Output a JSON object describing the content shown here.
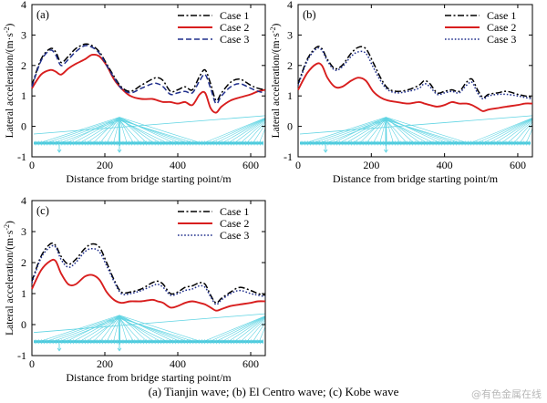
{
  "caption": "(a)  Tianjin  wave;  (b)  El Centro wave; (c) Kobe wave",
  "watermark": "@有色金属在线",
  "chart_data": [
    {
      "type": "line",
      "panel_label": "(a)",
      "xlabel": "Distance from bridge starting point/m",
      "ylabel_pre": "Lateral acceleration/(m·s",
      "ylabel_exp": "-2",
      "ylabel_post": ")",
      "xlim": [
        0,
        640
      ],
      "ylim": [
        -1,
        4
      ],
      "xticks": [
        0,
        200,
        400,
        600
      ],
      "yticks": [
        -1,
        0,
        1,
        2,
        3,
        4
      ],
      "legend_position": "top-right",
      "grid": false,
      "x": [
        0,
        25,
        50,
        65,
        80,
        100,
        120,
        145,
        165,
        185,
        205,
        225,
        245,
        270,
        300,
        330,
        345,
        360,
        380,
        400,
        420,
        440,
        460,
        475,
        490,
        505,
        520,
        545,
        570,
        600,
        620,
        640
      ],
      "series": [
        {
          "name": "Case 1",
          "color": "#000000",
          "dash": "dashdot",
          "values": [
            1.35,
            2.2,
            2.55,
            2.45,
            2.1,
            2.3,
            2.55,
            2.7,
            2.65,
            2.45,
            2.05,
            1.65,
            1.3,
            1.15,
            1.35,
            1.55,
            1.6,
            1.5,
            1.15,
            1.2,
            1.3,
            1.2,
            1.65,
            1.85,
            1.4,
            0.85,
            1.1,
            1.45,
            1.55,
            1.35,
            1.25,
            1.2
          ]
        },
        {
          "name": "Case 2",
          "color": "#d81e1e",
          "dash": "solid",
          "values": [
            1.25,
            1.7,
            1.85,
            1.8,
            1.7,
            1.9,
            2.05,
            2.2,
            2.35,
            2.3,
            2.0,
            1.55,
            1.25,
            1.0,
            0.9,
            0.9,
            0.85,
            0.8,
            0.8,
            0.75,
            0.8,
            0.7,
            1.05,
            1.1,
            0.6,
            0.45,
            0.65,
            0.85,
            0.95,
            1.05,
            1.15,
            1.2
          ]
        },
        {
          "name": "Case 3",
          "color": "#1f2e8c",
          "dash": "dashed",
          "values": [
            1.3,
            2.15,
            2.5,
            2.35,
            2.0,
            2.2,
            2.45,
            2.65,
            2.6,
            2.4,
            2.0,
            1.6,
            1.25,
            1.1,
            1.25,
            1.4,
            1.4,
            1.3,
            1.05,
            1.1,
            1.15,
            1.1,
            1.5,
            1.7,
            1.25,
            0.75,
            1.0,
            1.3,
            1.4,
            1.25,
            1.15,
            1.1
          ]
        }
      ]
    },
    {
      "type": "line",
      "panel_label": "(b)",
      "xlabel": "Distance from bridge starting point/m",
      "ylabel_pre": "Lateral acceleration/(m·s",
      "ylabel_exp": "-2",
      "ylabel_post": ")",
      "xlim": [
        0,
        640
      ],
      "ylim": [
        -1,
        4
      ],
      "xticks": [
        0,
        200,
        400,
        600
      ],
      "yticks": [
        -1,
        0,
        1,
        2,
        3,
        4
      ],
      "legend_position": "top-right",
      "grid": false,
      "x": [
        0,
        25,
        50,
        65,
        80,
        100,
        120,
        145,
        165,
        185,
        205,
        225,
        245,
        270,
        300,
        330,
        345,
        360,
        380,
        400,
        420,
        440,
        460,
        475,
        490,
        505,
        520,
        545,
        570,
        600,
        620,
        640
      ],
      "series": [
        {
          "name": "Case 1",
          "color": "#000000",
          "dash": "dashdot",
          "values": [
            1.4,
            2.2,
            2.6,
            2.55,
            2.2,
            1.9,
            2.0,
            2.4,
            2.6,
            2.55,
            2.1,
            1.6,
            1.25,
            1.15,
            1.2,
            1.35,
            1.5,
            1.4,
            1.1,
            1.15,
            1.2,
            1.15,
            1.45,
            1.55,
            1.2,
            0.95,
            1.05,
            1.1,
            1.15,
            1.05,
            1.0,
            0.95
          ]
        },
        {
          "name": "Case 2",
          "color": "#d81e1e",
          "dash": "solid",
          "values": [
            1.2,
            1.75,
            2.05,
            2.0,
            1.6,
            1.3,
            1.3,
            1.5,
            1.6,
            1.5,
            1.15,
            0.95,
            0.85,
            0.8,
            0.75,
            0.8,
            0.75,
            0.7,
            0.65,
            0.7,
            0.8,
            0.75,
            0.75,
            0.7,
            0.6,
            0.5,
            0.55,
            0.6,
            0.65,
            0.7,
            0.75,
            0.75
          ]
        },
        {
          "name": "Case 3",
          "color": "#1f2e8c",
          "dash": "dotted",
          "values": [
            1.35,
            2.15,
            2.55,
            2.5,
            2.15,
            1.85,
            1.95,
            2.3,
            2.45,
            2.4,
            1.95,
            1.5,
            1.2,
            1.1,
            1.15,
            1.25,
            1.4,
            1.3,
            1.05,
            1.1,
            1.15,
            1.1,
            1.35,
            1.45,
            1.1,
            0.9,
            1.0,
            1.05,
            1.05,
            1.0,
            0.95,
            0.9
          ]
        }
      ]
    },
    {
      "type": "line",
      "panel_label": "(c)",
      "xlabel": "Distance from bridge starting point/m",
      "ylabel_pre": "Lateral acceleration/(m·s",
      "ylabel_exp": "-2",
      "ylabel_post": ")",
      "xlim": [
        0,
        640
      ],
      "ylim": [
        -1,
        4
      ],
      "xticks": [
        0,
        200,
        400,
        600
      ],
      "yticks": [
        -1,
        0,
        1,
        2,
        3,
        4
      ],
      "legend_position": "top-right",
      "grid": false,
      "x": [
        0,
        25,
        50,
        65,
        80,
        100,
        120,
        145,
        165,
        185,
        205,
        225,
        245,
        270,
        300,
        330,
        345,
        360,
        380,
        400,
        420,
        440,
        460,
        475,
        490,
        505,
        520,
        545,
        570,
        600,
        620,
        640
      ],
      "series": [
        {
          "name": "Case 1",
          "color": "#000000",
          "dash": "dashdot",
          "values": [
            1.4,
            2.2,
            2.6,
            2.55,
            2.2,
            1.95,
            2.1,
            2.45,
            2.6,
            2.5,
            2.0,
            1.45,
            1.05,
            1.05,
            1.15,
            1.35,
            1.4,
            1.3,
            1.0,
            1.05,
            1.2,
            1.25,
            1.35,
            1.3,
            0.95,
            0.7,
            0.85,
            1.05,
            1.2,
            1.1,
            1.0,
            0.95
          ]
        },
        {
          "name": "Case 2",
          "color": "#d81e1e",
          "dash": "solid",
          "values": [
            1.15,
            1.75,
            2.05,
            2.05,
            1.65,
            1.3,
            1.3,
            1.55,
            1.6,
            1.45,
            1.05,
            0.8,
            0.7,
            0.75,
            0.75,
            0.8,
            0.75,
            0.7,
            0.55,
            0.6,
            0.7,
            0.75,
            0.7,
            0.65,
            0.55,
            0.45,
            0.5,
            0.6,
            0.65,
            0.7,
            0.75,
            0.75
          ]
        },
        {
          "name": "Case 3",
          "color": "#1f2e8c",
          "dash": "dotted",
          "values": [
            1.35,
            2.15,
            2.5,
            2.5,
            2.1,
            1.85,
            2.0,
            2.35,
            2.45,
            2.35,
            1.9,
            1.4,
            1.0,
            1.0,
            1.1,
            1.25,
            1.3,
            1.2,
            0.95,
            1.0,
            1.1,
            1.15,
            1.25,
            1.2,
            0.9,
            0.65,
            0.8,
            1.0,
            1.1,
            1.0,
            0.95,
            0.9
          ]
        }
      ]
    }
  ]
}
